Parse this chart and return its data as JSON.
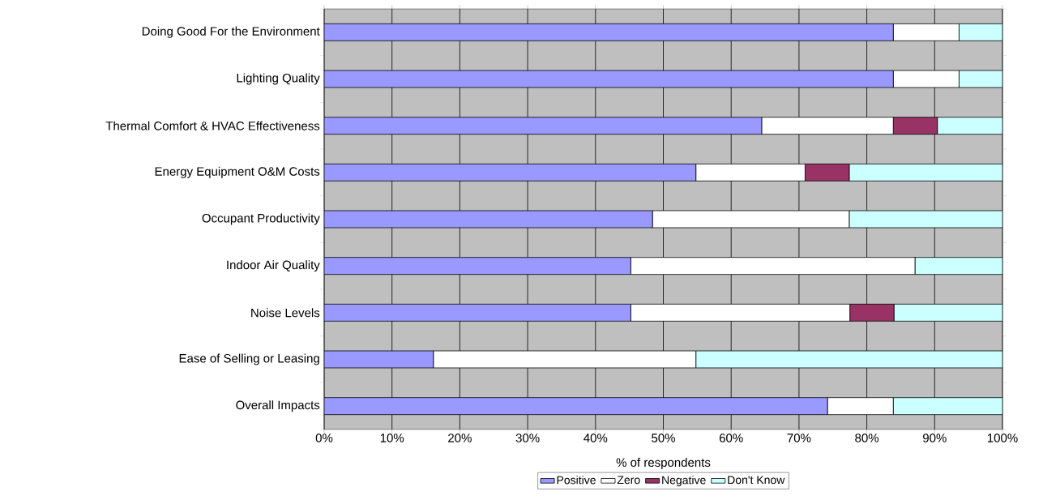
{
  "chart_data": {
    "type": "bar",
    "orientation": "horizontal",
    "stacked": true,
    "xlabel": "% of respondents",
    "categories": [
      "Doing Good For the Environment",
      "Lighting Quality",
      "Thermal Comfort & HVAC Effectiveness",
      "Energy Equipment O&M Costs",
      "Occupant Productivity",
      "Indoor Air Quality",
      "Noise Levels",
      "Ease of Selling or Leasing",
      "Overall Impacts"
    ],
    "series": [
      {
        "name": "Positive",
        "color": "#9999ff",
        "values": [
          83.9,
          83.9,
          64.5,
          54.8,
          48.4,
          45.2,
          45.2,
          16.1,
          74.2
        ]
      },
      {
        "name": "Zero",
        "color": "#ffffff",
        "values": [
          9.7,
          9.7,
          19.4,
          16.1,
          29.0,
          41.9,
          32.3,
          38.7,
          9.7
        ]
      },
      {
        "name": "Negative",
        "color": "#993366",
        "values": [
          0,
          0,
          6.5,
          6.5,
          0,
          0,
          6.5,
          0,
          0
        ]
      },
      {
        "name": "Don't Know",
        "color": "#ccffff",
        "values": [
          6.4,
          6.4,
          9.6,
          22.6,
          22.6,
          12.9,
          16.0,
          45.2,
          16.1
        ]
      }
    ],
    "xlim": [
      0,
      100
    ],
    "xticks": [
      {
        "value": 0,
        "label": "0%"
      },
      {
        "value": 10,
        "label": "10%"
      },
      {
        "value": 20,
        "label": "20%"
      },
      {
        "value": 30,
        "label": "30%"
      },
      {
        "value": 40,
        "label": "40%"
      },
      {
        "value": 50,
        "label": "50%"
      },
      {
        "value": 60,
        "label": "60%"
      },
      {
        "value": 70,
        "label": "70%"
      },
      {
        "value": 80,
        "label": "80%"
      },
      {
        "value": 90,
        "label": "90%"
      },
      {
        "value": 100,
        "label": "100%"
      }
    ],
    "grid": "x",
    "legend": "bottom"
  }
}
